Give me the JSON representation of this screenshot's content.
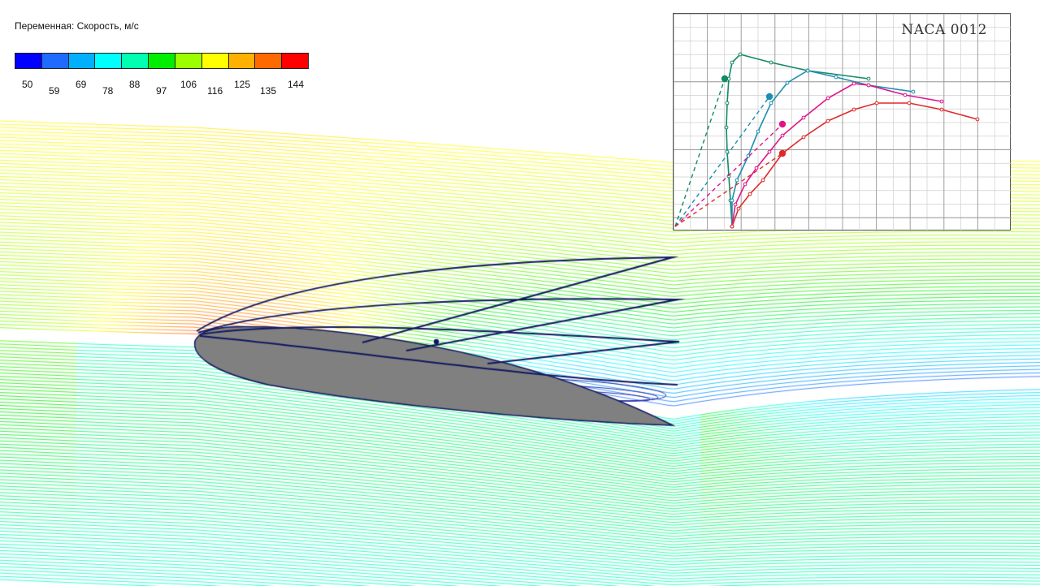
{
  "legend": {
    "title": "Переменная:  Скорость, м/с",
    "colors": [
      "#0000ff",
      "#1f6bff",
      "#00b0ff",
      "#00ffff",
      "#00ffb0",
      "#00ee00",
      "#9bff00",
      "#ffff00",
      "#ffb000",
      "#ff6a00",
      "#ff0000"
    ],
    "ticks": [
      "50",
      "59",
      "69",
      "78",
      "88",
      "97",
      "106",
      "116",
      "125",
      "135",
      "144"
    ]
  },
  "polar_panel": {
    "title": "NACA 0012",
    "series_colors": [
      "#128a66",
      "#1b8fb0",
      "#e0148a",
      "#e02a2a"
    ]
  },
  "scene": {
    "airfoil_fill": "#808080",
    "airfoil_outline": "#101860",
    "lift_vector_color": "#101860"
  }
}
